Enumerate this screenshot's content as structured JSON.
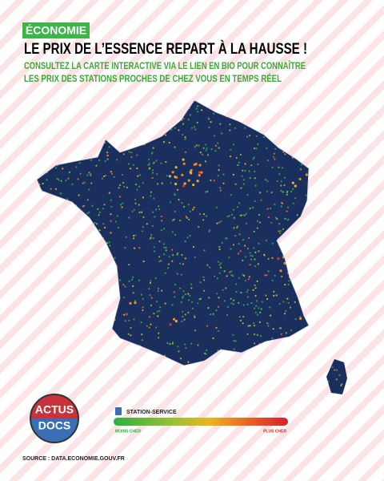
{
  "header": {
    "tag": "ÉCONOMIE",
    "title": "LE PRIX DE L’ESSENCE REPART À LA HAUSSE !",
    "subtitle": [
      "CONSULTEZ LA CARTE INTERACTIVE VIA LE LIEN EN BIO POUR CONNAÎTRE",
      "LES PRIX DES STATIONS PROCHES DE CHEZ VOUS EN TEMPS RÉEL"
    ]
  },
  "legend": {
    "title": "STATION-SERVICE",
    "low": "MOINS CHER",
    "high": "PLUS CHER"
  },
  "logo": {
    "line1": "ACTUS",
    "line2": "DOCS"
  },
  "source": "SOURCE : DATA.ECONOMIE.GOUV.FR"
}
